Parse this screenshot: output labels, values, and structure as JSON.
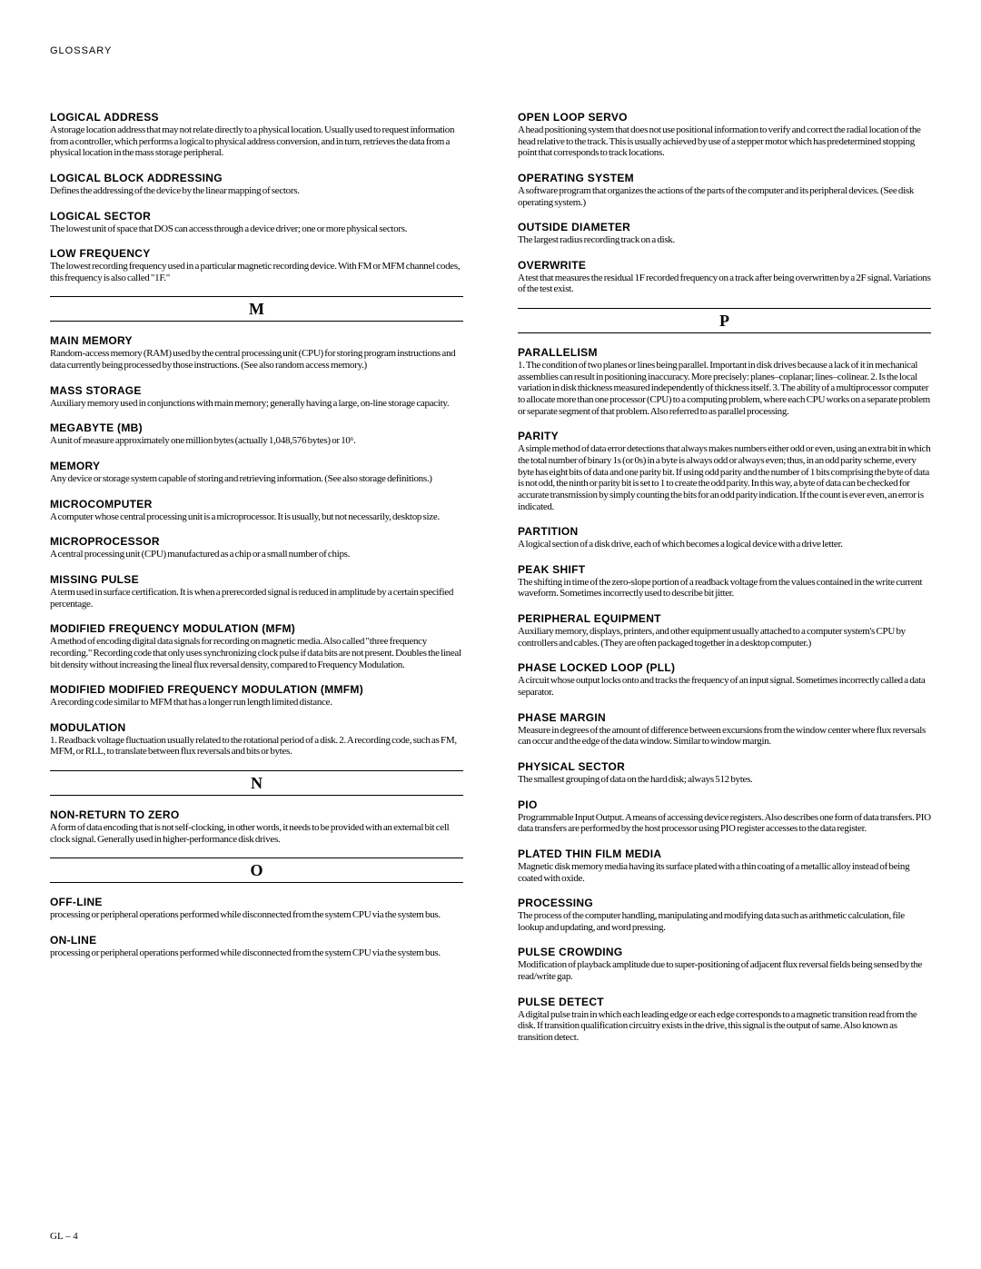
{
  "header": "GLOSSARY",
  "footer": "GL – 4",
  "left": [
    {
      "type": "entry",
      "term": "LOGICAL ADDRESS",
      "def": "A storage location address that may not relate directly to a physical location. Usually used to request information from a controller, which performs a logical to physical address conversion, and in turn, retrieves the data from a physical location in the mass storage peripheral."
    },
    {
      "type": "entry",
      "term": "LOGICAL BLOCK ADDRESSING",
      "def": "Defines the addressing of the device by the linear mapping of sectors."
    },
    {
      "type": "entry",
      "term": "LOGICAL SECTOR",
      "def": "The lowest unit of space that DOS can access through a device driver; one or more physical sectors."
    },
    {
      "type": "entry",
      "term": "LOW FREQUENCY",
      "def": "The lowest recording frequency used in a particular magnetic recording device. With FM or MFM channel codes, this frequency is also called \"1F.\""
    },
    {
      "type": "letter",
      "letter": "M"
    },
    {
      "type": "entry",
      "term": "MAIN MEMORY",
      "def": "Random-access memory (RAM) used by the central processing unit (CPU) for storing program instructions and data currently being processed by those instructions. (See also random access memory.)"
    },
    {
      "type": "entry",
      "term": "MASS STORAGE",
      "def": "Auxiliary memory used in conjunctions with main memory; generally having a large, on-line storage capacity."
    },
    {
      "type": "entry",
      "term": "MEGABYTE (MB)",
      "def": "A unit of measure approximately one million bytes (actually 1,048,576 bytes) or 10⁶."
    },
    {
      "type": "entry",
      "term": "MEMORY",
      "def": "Any device or storage system capable of storing and retrieving information. (See also storage definitions.)"
    },
    {
      "type": "entry",
      "term": "MICROCOMPUTER",
      "def": "A computer whose central processing unit is a microprocessor. It is usually, but not necessarily, desktop size."
    },
    {
      "type": "entry",
      "term": "MICROPROCESSOR",
      "def": "A central processing unit (CPU) manufactured as a chip or a small number of chips."
    },
    {
      "type": "entry",
      "term": "MISSING PULSE",
      "def": "A term used in surface certification. It is when a prerecorded signal is reduced in amplitude by a certain specified percentage."
    },
    {
      "type": "entry",
      "term": "MODIFIED FREQUENCY MODULATION (MFM)",
      "def": "A method of encoding digital data signals for recording on magnetic media. Also called \"three frequency recording.\" Recording code that only uses synchronizing clock pulse if data bits are not present. Doubles the lineal bit density without increasing the lineal flux reversal density, compared to Frequency Modulation."
    },
    {
      "type": "entry",
      "term": "MODIFIED MODIFIED FREQUENCY MODULATION (MMFM)",
      "def": "A recording code similar to MFM that has a longer run length limited distance."
    },
    {
      "type": "entry",
      "term": "MODULATION",
      "def": "1. Readback voltage fluctuation usually related to the rotational period of a disk. 2. A recording code, such as FM, MFM, or RLL, to translate between flux reversals and bits or bytes."
    },
    {
      "type": "letter",
      "letter": "N"
    },
    {
      "type": "entry",
      "term": "NON-RETURN TO ZERO",
      "def": "A form of data encoding that is not self-clocking, in other words, it needs to be provided with an external bit cell clock signal. Generally used in higher-performance disk drives."
    },
    {
      "type": "letter",
      "letter": "O"
    },
    {
      "type": "entry",
      "term": "OFF-LINE",
      "def": "processing or peripheral operations performed while disconnected from the system CPU via the system bus."
    },
    {
      "type": "entry",
      "term": "ON-LINE",
      "def": "processing or peripheral operations performed while disconnected from the system CPU via the system bus."
    }
  ],
  "right": [
    {
      "type": "entry",
      "term": "OPEN LOOP SERVO",
      "def": "A head positioning system that does not use positional information to verify and correct the radial location of the head relative to the track. This is usually achieved by use of a stepper motor which has predetermined stopping point that corresponds to track locations."
    },
    {
      "type": "entry",
      "term": "OPERATING SYSTEM",
      "def": "A software program that organizes the actions of the parts of the computer and its peripheral devices. (See disk operating system.)"
    },
    {
      "type": "entry",
      "term": "OUTSIDE DIAMETER",
      "def": "The largest radius recording track on a disk."
    },
    {
      "type": "entry",
      "term": "OVERWRITE",
      "def": "A test that measures the residual 1F recorded frequency on a track after being overwritten by a 2F signal. Variations of the test exist."
    },
    {
      "type": "letter",
      "letter": "P"
    },
    {
      "type": "entry",
      "term": "PARALLELISM",
      "def": "1. The condition of two planes or lines being parallel. Important in disk drives because a lack of it in mechanical assemblies can result in positioning inaccuracy. More precisely: planes–coplanar; lines–colinear. 2. Is the local variation in disk thickness measured independently of thickness itself. 3. The ability of a multiprocessor computer to allocate more than one processor (CPU) to a computing problem, where each CPU works on a separate problem or separate segment of that problem. Also referred to as parallel processing."
    },
    {
      "type": "entry",
      "term": "PARITY",
      "def": "A simple method of data error detections that always makes numbers either odd or even, using an extra bit in which the total number of binary 1s (or 0s) in a byte is always odd or always even; thus, in an odd parity scheme, every byte has eight bits of data and one parity bit. If using odd parity and the number of 1 bits comprising the byte of data is not odd, the ninth or parity bit is set to 1 to create the odd parity. In this way, a byte of data can be checked for accurate transmission by simply counting the bits for an odd parity indication. If the count is ever even, an error is indicated."
    },
    {
      "type": "entry",
      "term": "PARTITION",
      "def": "A logical section of a disk drive, each of which becomes a logical device with a drive letter."
    },
    {
      "type": "entry",
      "term": "PEAK SHIFT",
      "def": "The shifting in time of the zero-slope portion of a readback voltage from the values contained in the write current waveform. Sometimes incorrectly used to describe bit jitter."
    },
    {
      "type": "entry",
      "term": "PERIPHERAL EQUIPMENT",
      "def": "Auxiliary memory, displays, printers, and other equipment usually attached to a computer system's CPU by controllers and cables. (They are often packaged together in a desktop computer.)"
    },
    {
      "type": "entry",
      "term": "PHASE LOCKED LOOP (PLL)",
      "def": "A circuit whose output locks onto and tracks the frequency of an input signal. Sometimes incorrectly called a data separator."
    },
    {
      "type": "entry",
      "term": "PHASE MARGIN",
      "def": "Measure in degrees of the amount of difference between excursions from the window center where flux reversals can occur and the edge of the data window. Similar to window margin."
    },
    {
      "type": "entry",
      "term": "PHYSICAL SECTOR",
      "def": "The smallest grouping of data on the hard disk; always 512 bytes."
    },
    {
      "type": "entry",
      "term": "PIO",
      "def": "Programmable Input Output. A means of accessing device registers. Also describes one form of data transfers. PIO data transfers are performed by the host processor using PIO register accesses to the data register."
    },
    {
      "type": "entry",
      "term": "PLATED THIN FILM MEDIA",
      "def": "Magnetic disk memory media having its surface plated with a thin coating of a metallic alloy instead of being coated with oxide."
    },
    {
      "type": "entry",
      "term": "PROCESSING",
      "def": "The process of the computer handling, manipulating and modifying data such as arithmetic calculation, file lookup and updating, and word pressing."
    },
    {
      "type": "entry",
      "term": "PULSE CROWDING",
      "def": "Modification of playback amplitude due to super-positioning of adjacent flux reversal fields being sensed by the read/write gap."
    },
    {
      "type": "entry",
      "term": "PULSE DETECT",
      "def": "A digital pulse train in which each leading edge or each edge corresponds to a magnetic transition read from the disk. If transition qualification circuitry exists in the drive, this signal is the output of same. Also known as transition detect."
    }
  ]
}
